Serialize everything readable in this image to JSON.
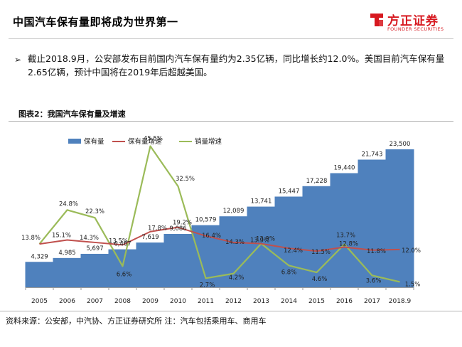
{
  "header": {
    "title": "中国汽车保有量即将成为世界第一",
    "logo_cn": "方正证券",
    "logo_en": "FOUNDER SECURITIES",
    "brand_color": "#d71920"
  },
  "content": {
    "bullet_icon": "arrow-bullet-icon",
    "text": "截止2018.9月，公安部发布目前国内汽车保有量约为2.35亿辆，同比增长约12.0%。美国目前汽车保有量2.65亿辆，预计中国将在2019年后超越美国。"
  },
  "figure": {
    "title": "图表2：我国汽车保有量及增速",
    "source": "资料来源：公安部，中汽协、方正证券研究所    注：汽车包括乘用车、商用车"
  },
  "chart_data": {
    "type": "bar",
    "categories": [
      "2005",
      "2006",
      "2007",
      "2008",
      "2009",
      "2010",
      "2011",
      "2012",
      "2013",
      "2014",
      "2015",
      "2016",
      "2017",
      "2018.9"
    ],
    "series": [
      {
        "name": "保有量",
        "type": "bar",
        "color": "#4f81bd",
        "values": [
          4329,
          4985,
          5697,
          6467,
          7619,
          9086,
          10579,
          12089,
          13741,
          15447,
          17228,
          19440,
          21743,
          23500
        ],
        "labels": [
          "4,329",
          "4,985",
          "5,697",
          "6,467",
          "7,619",
          "9,086",
          "10,579",
          "12,089",
          "13,741",
          "15,447",
          "17,228",
          "19,440",
          "21,743",
          "23,500"
        ]
      },
      {
        "name": "保有量增速",
        "type": "line",
        "color": "#c0504d",
        "values": [
          13.8,
          15.1,
          14.3,
          13.5,
          17.8,
          19.2,
          16.4,
          14.3,
          13.9,
          12.4,
          11.5,
          12.8,
          11.8,
          12.0
        ],
        "labels": [
          "13.8%",
          "15.1%",
          "14.3%",
          "13.5%",
          "17.8%",
          "19.2%",
          "16.4%",
          "14.3%",
          "13.9%",
          "12.4%",
          "11.5%",
          "12.8%",
          "11.8%",
          "12.0%"
        ]
      },
      {
        "name": "销量增速",
        "type": "line",
        "color": "#9bbb59",
        "values": [
          13.8,
          24.8,
          22.3,
          6.6,
          45.5,
          32.5,
          2.7,
          4.2,
          13.9,
          6.8,
          4.6,
          13.7,
          3.6,
          1.5
        ],
        "labels": [
          "",
          "24.8%",
          "22.3%",
          "6.6%",
          "45.5%",
          "32.5%",
          "2.7%",
          "4.2%",
          "13.9%",
          "6.8%",
          "4.6%",
          "13.7%",
          "3.6%",
          "1.5%"
        ]
      }
    ],
    "legend": [
      "保有量",
      "保有量增速",
      "销量增速"
    ],
    "legend_position": "top",
    "grid": false
  }
}
